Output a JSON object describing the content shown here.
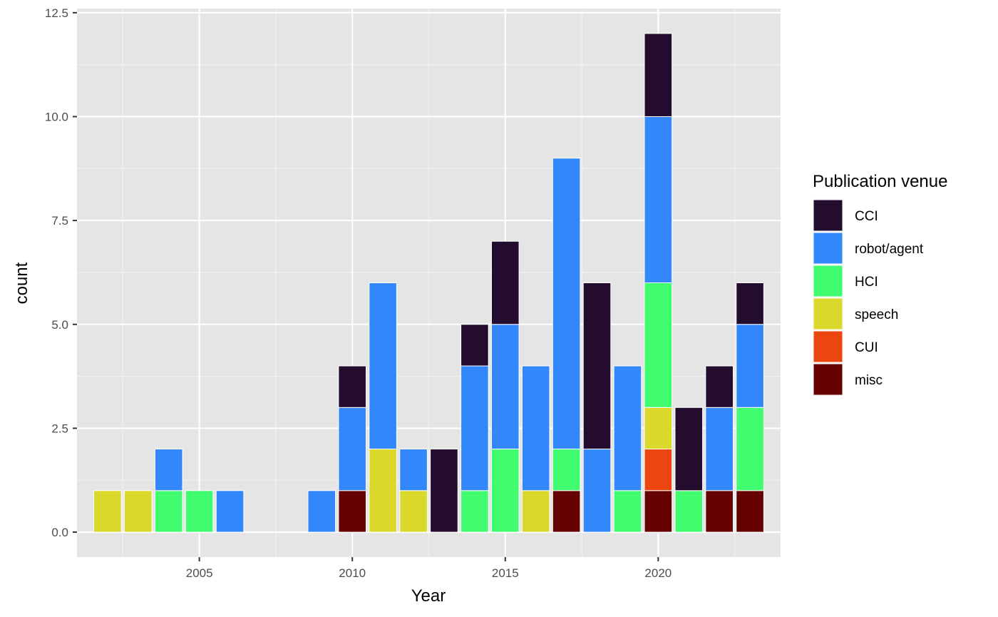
{
  "chart_data": {
    "type": "bar",
    "stacked": true,
    "xlabel": "Year",
    "ylabel": "count",
    "xlim": [
      2001,
      2024
    ],
    "ylim": [
      -0.6,
      12.6
    ],
    "x_ticks": [
      2005,
      2010,
      2015,
      2020
    ],
    "y_ticks": [
      "0.0",
      "2.5",
      "5.0",
      "7.5",
      "10.0",
      "12.5"
    ],
    "y_tick_values": [
      0,
      2.5,
      5,
      7.5,
      10,
      12.5
    ],
    "grid": true,
    "legend_position": "right",
    "legend_title": "Publication venue",
    "x": [
      2002,
      2003,
      2004,
      2005,
      2006,
      2007,
      2008,
      2009,
      2010,
      2011,
      2012,
      2013,
      2014,
      2015,
      2016,
      2017,
      2018,
      2019,
      2020,
      2021,
      2022,
      2023
    ],
    "series": [
      {
        "name": "misc",
        "color": "#650000",
        "values": [
          0,
          0,
          0,
          0,
          0,
          0,
          0,
          0,
          1,
          0,
          0,
          0,
          0,
          0,
          0,
          1,
          0,
          0,
          1,
          0,
          1,
          1
        ]
      },
      {
        "name": "CUI",
        "color": "#eb4510",
        "values": [
          0,
          0,
          0,
          0,
          0,
          0,
          0,
          0,
          0,
          0,
          0,
          0,
          0,
          0,
          0,
          0,
          0,
          0,
          1,
          0,
          0,
          0
        ]
      },
      {
        "name": "speech",
        "color": "#dbd82c",
        "values": [
          1,
          1,
          0,
          0,
          0,
          0,
          0,
          0,
          0,
          2,
          1,
          0,
          0,
          0,
          1,
          0,
          0,
          0,
          1,
          0,
          0,
          0
        ]
      },
      {
        "name": "HCI",
        "color": "#41fc6f",
        "values": [
          0,
          0,
          1,
          1,
          0,
          0,
          0,
          0,
          0,
          0,
          0,
          0,
          1,
          2,
          0,
          1,
          0,
          1,
          3,
          1,
          0,
          2
        ]
      },
      {
        "name": "robot/agent",
        "color": "#3287fb",
        "values": [
          0,
          0,
          1,
          0,
          1,
          0,
          0,
          1,
          2,
          4,
          1,
          0,
          3,
          3,
          3,
          7,
          2,
          3,
          4,
          0,
          2,
          2
        ]
      },
      {
        "name": "CCI",
        "color": "#230c2e",
        "values": [
          0,
          0,
          0,
          0,
          0,
          0,
          0,
          0,
          1,
          0,
          0,
          2,
          1,
          2,
          0,
          0,
          4,
          0,
          2,
          2,
          1,
          1
        ]
      }
    ],
    "legend_order": [
      "CCI",
      "robot/agent",
      "HCI",
      "speech",
      "CUI",
      "misc"
    ]
  }
}
